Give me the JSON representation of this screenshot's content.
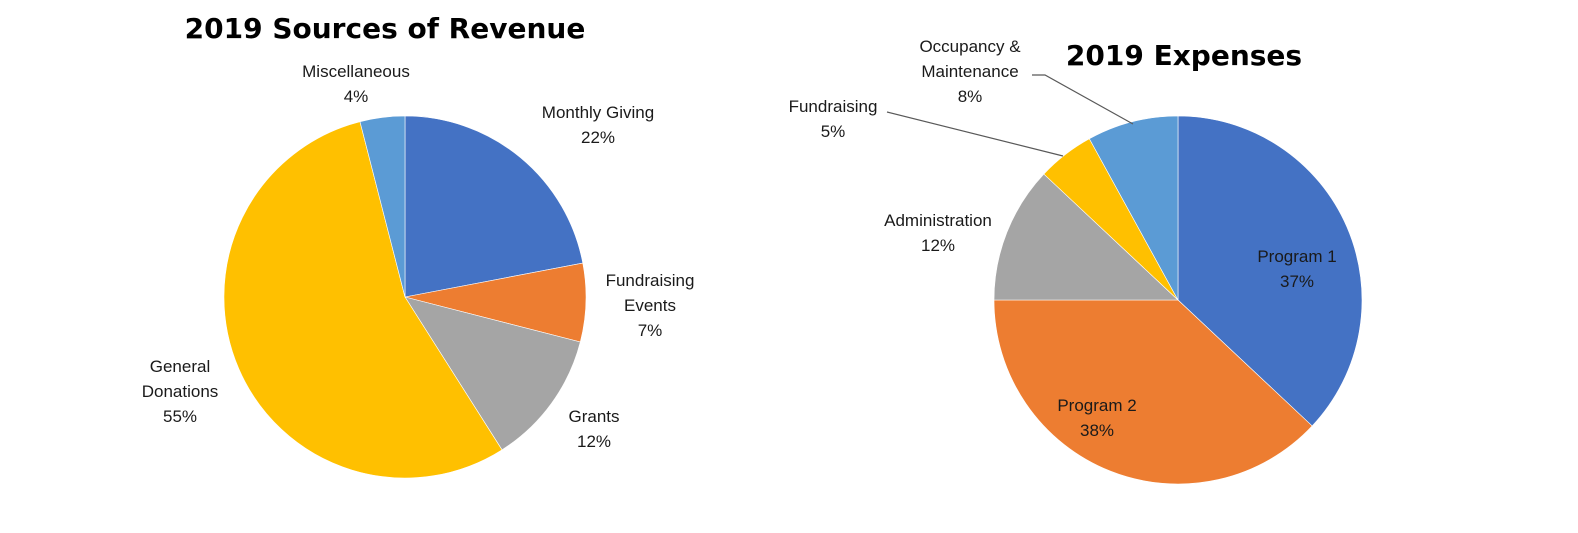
{
  "colors": {
    "blue": "#4472C4",
    "orange": "#ED7D31",
    "gray": "#A5A5A5",
    "gold": "#FFC000",
    "light_blue": "#5B9BD5"
  },
  "chart_data": [
    {
      "type": "pie",
      "title": "2019 Sources of Revenue",
      "start_angle_deg": 0,
      "direction": "clockwise",
      "slices": [
        {
          "label_lines": [
            "Monthly Giving"
          ],
          "value": 22,
          "value_text": "22%",
          "color": "#4472C4"
        },
        {
          "label_lines": [
            "Fundraising",
            "Events"
          ],
          "value": 7,
          "value_text": "7%",
          "color": "#ED7D31"
        },
        {
          "label_lines": [
            "Grants"
          ],
          "value": 12,
          "value_text": "12%",
          "color": "#A5A5A5"
        },
        {
          "label_lines": [
            "General",
            "Donations"
          ],
          "value": 55,
          "value_text": "55%",
          "color": "#FFC000"
        },
        {
          "label_lines": [
            "Miscellaneous"
          ],
          "value": 4,
          "value_text": "4%",
          "color": "#5B9BD5"
        }
      ]
    },
    {
      "type": "pie",
      "title": "2019 Expenses",
      "start_angle_deg": 0,
      "direction": "clockwise",
      "slices": [
        {
          "label_lines": [
            "Program 1"
          ],
          "value": 37,
          "value_text": "37%",
          "color": "#4472C4"
        },
        {
          "label_lines": [
            "Program 2"
          ],
          "value": 38,
          "value_text": "38%",
          "color": "#ED7D31"
        },
        {
          "label_lines": [
            "Administration"
          ],
          "value": 12,
          "value_text": "12%",
          "color": "#A5A5A5"
        },
        {
          "label_lines": [
            "Fundraising"
          ],
          "value": 5,
          "value_text": "5%",
          "color": "#FFC000"
        },
        {
          "label_lines": [
            "Occupancy &",
            "Maintenance"
          ],
          "value": 8,
          "value_text": "8%",
          "color": "#5B9BD5"
        }
      ]
    }
  ]
}
